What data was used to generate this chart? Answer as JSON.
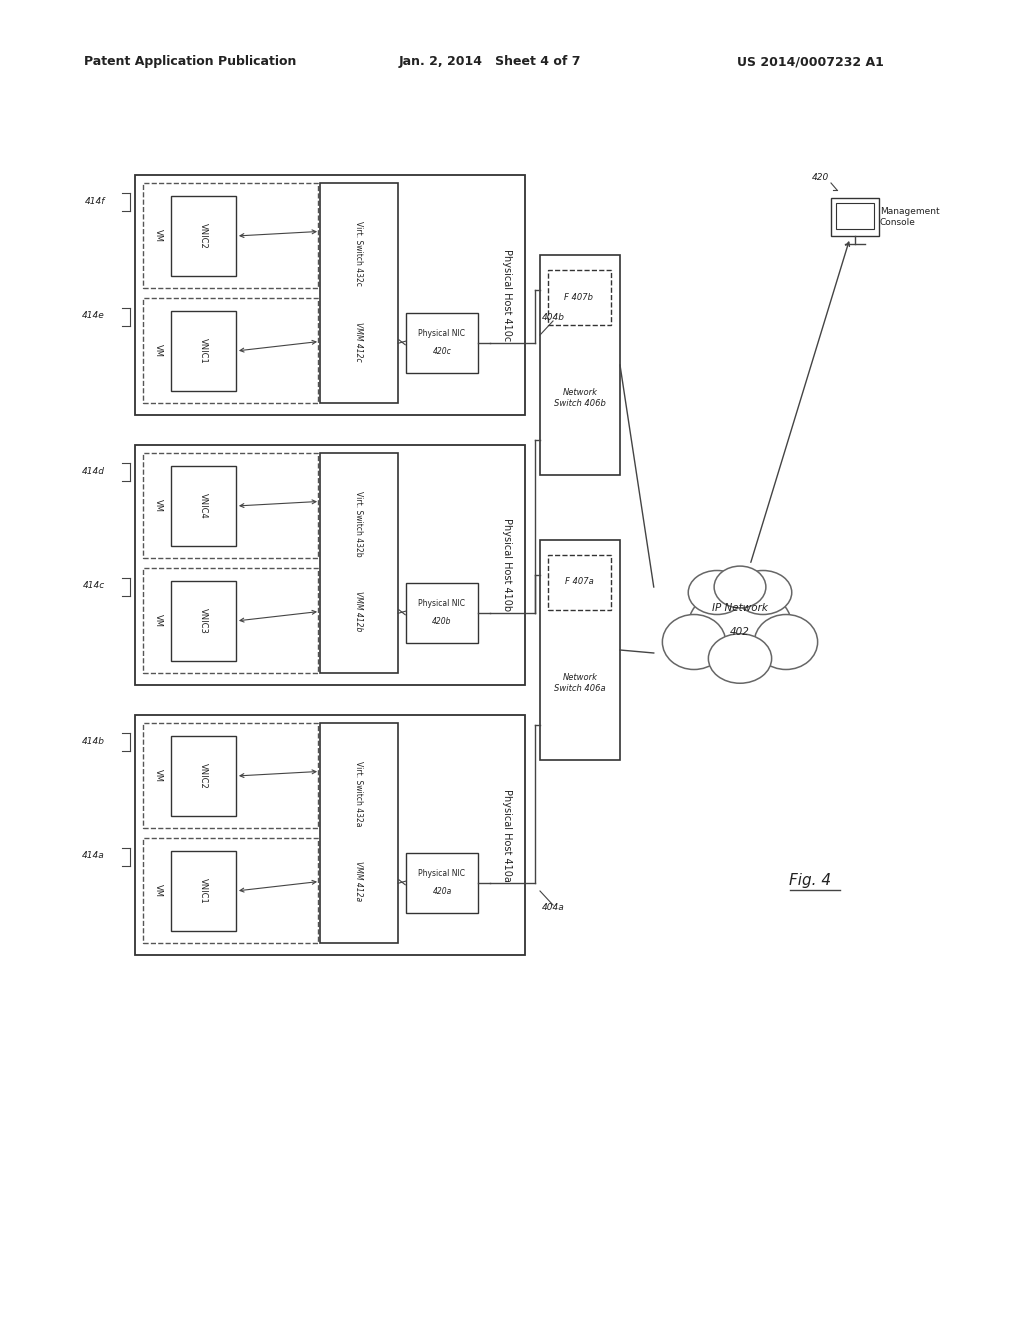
{
  "header_left": "Patent Application Publication",
  "header_mid": "Jan. 2, 2014   Sheet 4 of 7",
  "header_right": "US 2014/0007232 A1",
  "fig_label": "Fig. 4",
  "bg_color": "#ffffff",
  "line_color": "#555555",
  "text_color": "#222222"
}
